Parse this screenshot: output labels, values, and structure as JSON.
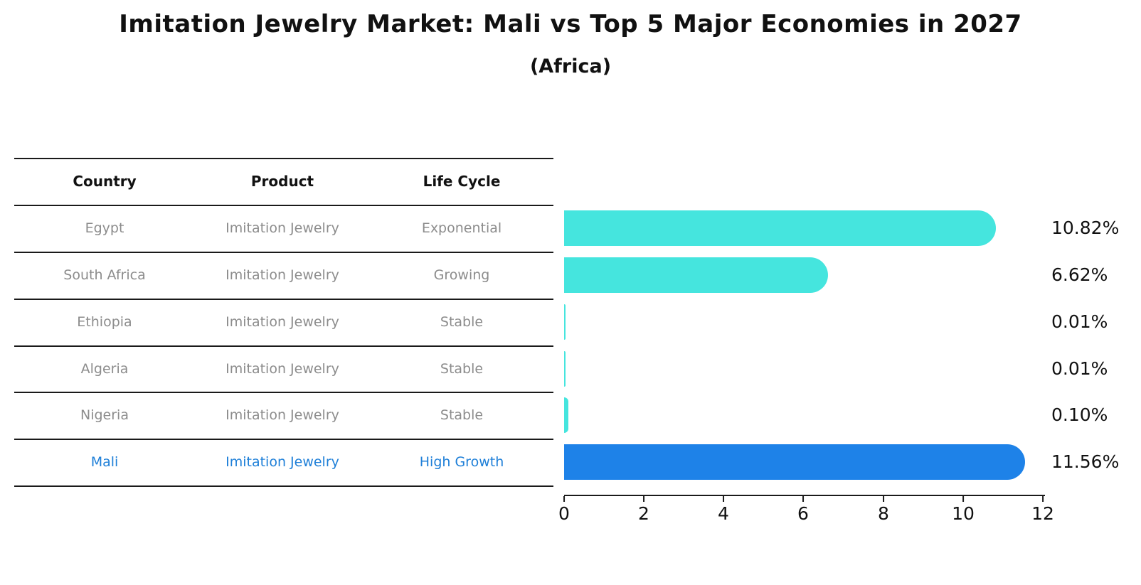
{
  "chart_data": {
    "type": "bar",
    "orientation": "horizontal",
    "title": "Imitation Jewelry Market: Mali vs Top 5 Major Economies in 2027",
    "subtitle": "(Africa)",
    "categories": [
      "Egypt",
      "South Africa",
      "Ethiopia",
      "Algeria",
      "Nigeria",
      "Mali"
    ],
    "values": [
      10.82,
      6.62,
      0.01,
      0.01,
      0.1,
      11.56
    ],
    "value_labels": [
      "10.82%",
      "6.62%",
      "0.01%",
      "0.01%",
      "0.10%",
      "11.56%"
    ],
    "xlabel": "",
    "ylabel": "",
    "xlim": [
      0,
      12
    ],
    "x_ticks": [
      "0",
      "2",
      "4",
      "6",
      "8",
      "10",
      "12"
    ],
    "grid": false,
    "legend": false,
    "bar_color": "#45E5DE",
    "highlight_color": "#1E82E8",
    "highlight_index": 5
  },
  "table": {
    "headers": [
      "Country",
      "Product",
      "Life Cycle"
    ],
    "rows": [
      {
        "country": "Egypt",
        "product": "Imitation Jewelry",
        "life_cycle": "Exponential",
        "highlight": false
      },
      {
        "country": "South Africa",
        "product": "Imitation Jewelry",
        "life_cycle": "Growing",
        "highlight": false
      },
      {
        "country": "Ethiopia",
        "product": "Imitation Jewelry",
        "life_cycle": "Stable",
        "highlight": false
      },
      {
        "country": "Algeria",
        "product": "Imitation Jewelry",
        "life_cycle": "Stable",
        "highlight": false
      },
      {
        "country": "Nigeria",
        "product": "Imitation Jewelry",
        "life_cycle": "Stable",
        "highlight": false
      },
      {
        "country": "Mali",
        "product": "Imitation Jewelry",
        "life_cycle": "High Growth",
        "highlight": true
      }
    ]
  }
}
